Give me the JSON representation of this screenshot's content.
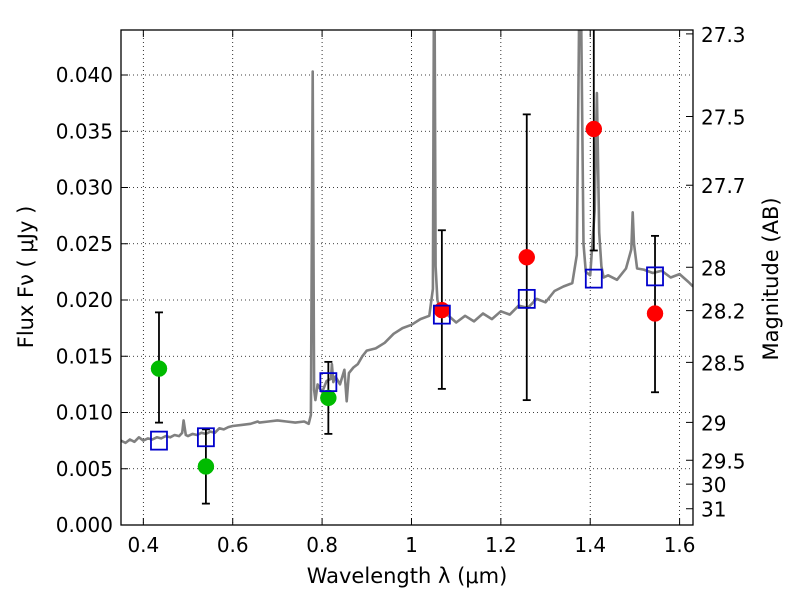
{
  "chart_data": {
    "type": "scatter",
    "xlabel": "Wavelength  λ (μm)",
    "ylabel": "Flux  Fν  ( μJy )",
    "ylabel_right": "Magnitude (AB)",
    "xlim": [
      0.35,
      1.63
    ],
    "ylim": [
      0.0,
      0.044
    ],
    "grid": true,
    "x_ticks": [
      0.4,
      0.6,
      0.8,
      1.0,
      1.2,
      1.4,
      1.6
    ],
    "x_tick_labels": [
      "0.4",
      "0.6",
      "0.8",
      "1",
      "1.2",
      "1.4",
      "1.6"
    ],
    "y_ticks": [
      0.0,
      0.005,
      0.01,
      0.015,
      0.02,
      0.025,
      0.03,
      0.035,
      0.04
    ],
    "y_tick_labels": [
      "0.000",
      "0.005",
      "0.010",
      "0.015",
      "0.020",
      "0.025",
      "0.030",
      "0.035",
      "0.040"
    ],
    "mag_ticks": [
      "27.3",
      "27.5",
      "27.7",
      "28",
      "28.2",
      "28.5",
      "29",
      "29.5",
      "30",
      "31"
    ],
    "template_spectrum": {
      "color": "#808080",
      "x": [
        0.35,
        0.36,
        0.37,
        0.38,
        0.39,
        0.4,
        0.41,
        0.42,
        0.43,
        0.44,
        0.45,
        0.46,
        0.47,
        0.48,
        0.487,
        0.49,
        0.495,
        0.5,
        0.51,
        0.52,
        0.53,
        0.54,
        0.55,
        0.56,
        0.57,
        0.58,
        0.59,
        0.6,
        0.62,
        0.64,
        0.656,
        0.66,
        0.68,
        0.7,
        0.72,
        0.74,
        0.76,
        0.77,
        0.775,
        0.779,
        0.782,
        0.785,
        0.79,
        0.8,
        0.81,
        0.82,
        0.822,
        0.825,
        0.83,
        0.84,
        0.85,
        0.855,
        0.86,
        0.87,
        0.88,
        0.89,
        0.9,
        0.92,
        0.94,
        0.96,
        0.98,
        1.0,
        1.02,
        1.04,
        1.048,
        1.05,
        1.052,
        1.054,
        1.058,
        1.065,
        1.08,
        1.1,
        1.12,
        1.14,
        1.16,
        1.18,
        1.2,
        1.22,
        1.24,
        1.26,
        1.28,
        1.3,
        1.32,
        1.34,
        1.36,
        1.37,
        1.375,
        1.38,
        1.385,
        1.39,
        1.4,
        1.41,
        1.415,
        1.42,
        1.425,
        1.43,
        1.44,
        1.46,
        1.48,
        1.492,
        1.495,
        1.498,
        1.505,
        1.52,
        1.54,
        1.56,
        1.58,
        1.6,
        1.62,
        1.63
      ],
      "y": [
        0.0075,
        0.0073,
        0.0076,
        0.0074,
        0.0078,
        0.0075,
        0.0077,
        0.0076,
        0.0078,
        0.0077,
        0.0079,
        0.0078,
        0.008,
        0.0079,
        0.0082,
        0.0093,
        0.008,
        0.0079,
        0.0081,
        0.008,
        0.0082,
        0.0081,
        0.0083,
        0.0082,
        0.0086,
        0.0085,
        0.0087,
        0.0088,
        0.0089,
        0.009,
        0.0092,
        0.0091,
        0.0092,
        0.0093,
        0.0092,
        0.0091,
        0.0092,
        0.009,
        0.0098,
        0.0403,
        0.012,
        0.0111,
        0.0125,
        0.0118,
        0.0128,
        0.013,
        0.0143,
        0.0127,
        0.0132,
        0.0125,
        0.0138,
        0.011,
        0.0135,
        0.014,
        0.0143,
        0.015,
        0.0155,
        0.0157,
        0.0162,
        0.017,
        0.0175,
        0.0178,
        0.0183,
        0.0186,
        0.021,
        0.044,
        0.044,
        0.023,
        0.02,
        0.019,
        0.0187,
        0.018,
        0.0186,
        0.0181,
        0.0188,
        0.0183,
        0.019,
        0.0187,
        0.0195,
        0.0193,
        0.0201,
        0.0198,
        0.0208,
        0.0212,
        0.0215,
        0.024,
        0.044,
        0.044,
        0.025,
        0.0225,
        0.0222,
        0.028,
        0.0384,
        0.026,
        0.023,
        0.022,
        0.0222,
        0.0218,
        0.0228,
        0.0245,
        0.0278,
        0.025,
        0.0228,
        0.0227,
        0.0224,
        0.0226,
        0.022,
        0.0223,
        0.0216,
        0.0212
      ]
    },
    "series": [
      {
        "color": "#00bb00",
        "points": [
          {
            "x": 0.435,
            "y": 0.0139,
            "err_low": 0.0091,
            "err_high": 0.0189
          },
          {
            "x": 0.54,
            "y": 0.0052,
            "err_low": 0.0019,
            "err_high": 0.0085
          },
          {
            "x": 0.814,
            "y": 0.0113,
            "err_low": 0.0081,
            "err_high": 0.0145
          }
        ]
      },
      {
        "color": "#ff0000",
        "points": [
          {
            "x": 1.068,
            "y": 0.0191,
            "err_low": 0.0121,
            "err_high": 0.0262
          },
          {
            "x": 1.258,
            "y": 0.0238,
            "err_low": 0.0111,
            "err_high": 0.0365
          },
          {
            "x": 1.408,
            "y": 0.0352,
            "err_low": 0.0244,
            "err_high": 0.045
          },
          {
            "x": 1.545,
            "y": 0.0188,
            "err_low": 0.0118,
            "err_high": 0.0257
          }
        ]
      },
      {
        "color": "#0000cc",
        "marker": "square",
        "points": [
          {
            "x": 0.435,
            "y": 0.0075
          },
          {
            "x": 0.54,
            "y": 0.0078
          },
          {
            "x": 0.814,
            "y": 0.0127
          },
          {
            "x": 1.068,
            "y": 0.0187
          },
          {
            "x": 1.258,
            "y": 0.0201
          },
          {
            "x": 1.408,
            "y": 0.0219
          },
          {
            "x": 1.545,
            "y": 0.0221
          }
        ]
      }
    ]
  }
}
